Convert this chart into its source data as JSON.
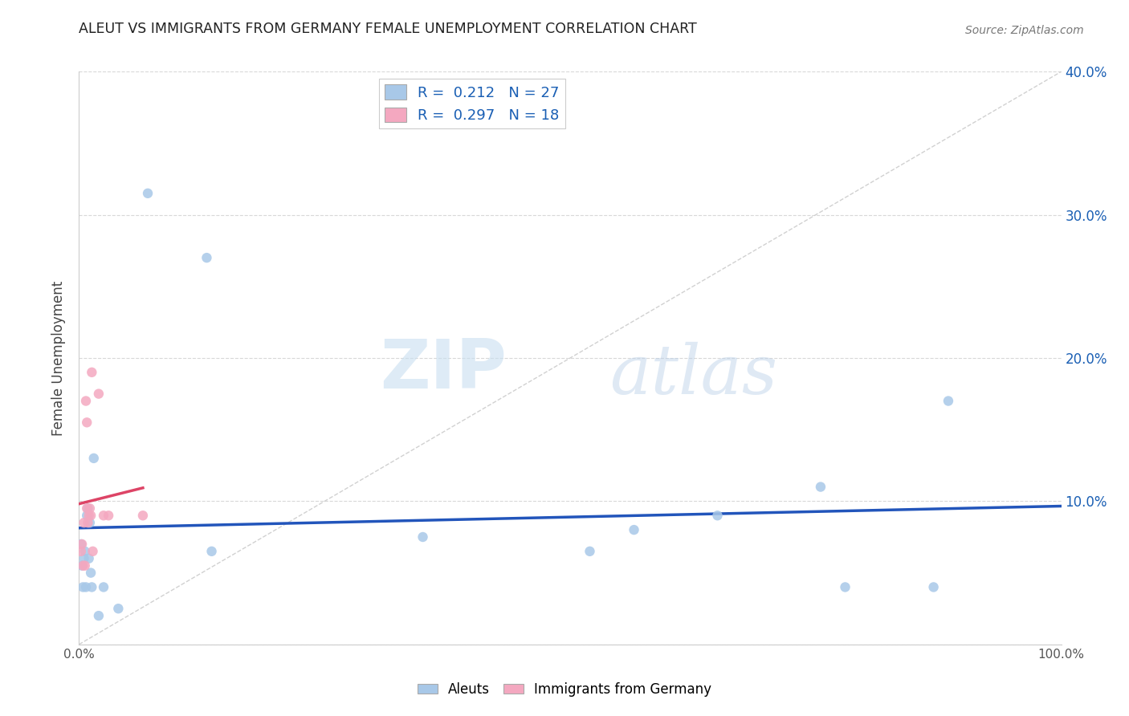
{
  "title": "ALEUT VS IMMIGRANTS FROM GERMANY FEMALE UNEMPLOYMENT CORRELATION CHART",
  "source": "Source: ZipAtlas.com",
  "ylabel": "Female Unemployment",
  "xlim": [
    0,
    1
  ],
  "ylim": [
    0,
    0.4
  ],
  "y_ticks": [
    0.0,
    0.1,
    0.2,
    0.3,
    0.4
  ],
  "y_tick_labels_right": [
    "",
    "10.0%",
    "20.0%",
    "30.0%",
    "40.0%"
  ],
  "aleuts_color": "#a8c8e8",
  "immigrants_color": "#f4a8c0",
  "aleuts_line_color": "#2255bb",
  "immigrants_line_color": "#dd4466",
  "diagonal_color": "#cccccc",
  "R_aleuts": "0.212",
  "N_aleuts": "27",
  "R_immigrants": "0.297",
  "N_immigrants": "18",
  "legend_label_aleuts": "Aleuts",
  "legend_label_immigrants": "Immigrants from Germany",
  "aleuts_x": [
    0.002,
    0.003,
    0.004,
    0.005,
    0.006,
    0.007,
    0.008,
    0.009,
    0.01,
    0.011,
    0.012,
    0.013,
    0.015,
    0.02,
    0.025,
    0.04,
    0.07,
    0.13,
    0.135,
    0.35,
    0.52,
    0.565,
    0.65,
    0.755,
    0.78,
    0.87,
    0.885
  ],
  "aleuts_y": [
    0.07,
    0.055,
    0.04,
    0.06,
    0.065,
    0.04,
    0.09,
    0.095,
    0.06,
    0.085,
    0.05,
    0.04,
    0.13,
    0.02,
    0.04,
    0.025,
    0.315,
    0.27,
    0.065,
    0.075,
    0.065,
    0.08,
    0.09,
    0.11,
    0.04,
    0.04,
    0.17
  ],
  "immigrants_x": [
    0.002,
    0.003,
    0.004,
    0.005,
    0.006,
    0.007,
    0.008,
    0.008,
    0.009,
    0.01,
    0.011,
    0.012,
    0.013,
    0.014,
    0.02,
    0.025,
    0.03,
    0.065
  ],
  "immigrants_y": [
    0.065,
    0.07,
    0.055,
    0.085,
    0.055,
    0.17,
    0.095,
    0.155,
    0.085,
    0.09,
    0.095,
    0.09,
    0.19,
    0.065,
    0.175,
    0.09,
    0.09,
    0.09
  ],
  "watermark_zip": "ZIP",
  "watermark_atlas": "atlas",
  "background_color": "#ffffff",
  "grid_color": "#d8d8d8",
  "legend_text_color": "#1a5fb4",
  "scatter_size": 80
}
